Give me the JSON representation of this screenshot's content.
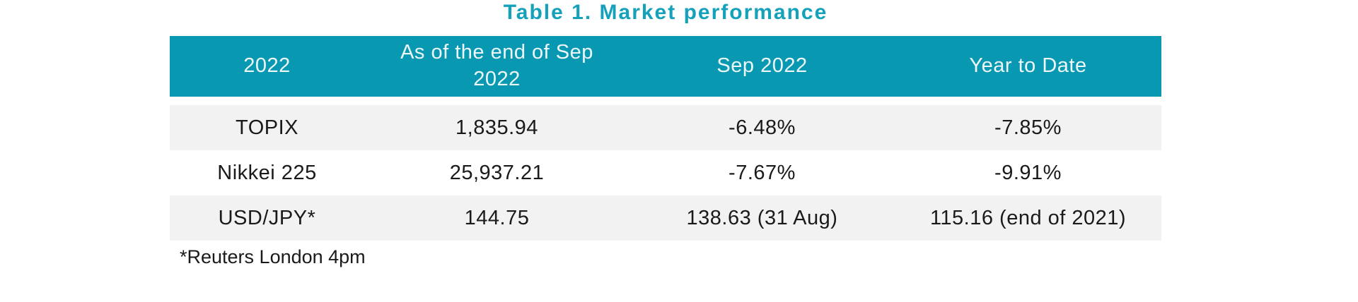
{
  "chart_data": {
    "type": "table",
    "title": "Table 1. Market performance",
    "columns": [
      "2022",
      "As of the end of Sep 2022",
      "Sep 2022",
      "Year to Date"
    ],
    "rows": [
      [
        "TOPIX",
        "1,835.94",
        "-6.48%",
        "-7.85%"
      ],
      [
        "Nikkei 225",
        "25,937.21",
        "-7.67%",
        "-9.91%"
      ],
      [
        "USD/JPY*",
        "144.75",
        "138.63 (31 Aug)",
        "115.16 (end of 2021)"
      ]
    ],
    "footnote": "*Reuters London 4pm"
  },
  "colors": {
    "title_text": "#14A1B9",
    "header_background": "#0898B2",
    "header_text": "#EDF7F9",
    "alt_row_background": "#F2F2F2",
    "body_text": "#1A1A1A"
  }
}
